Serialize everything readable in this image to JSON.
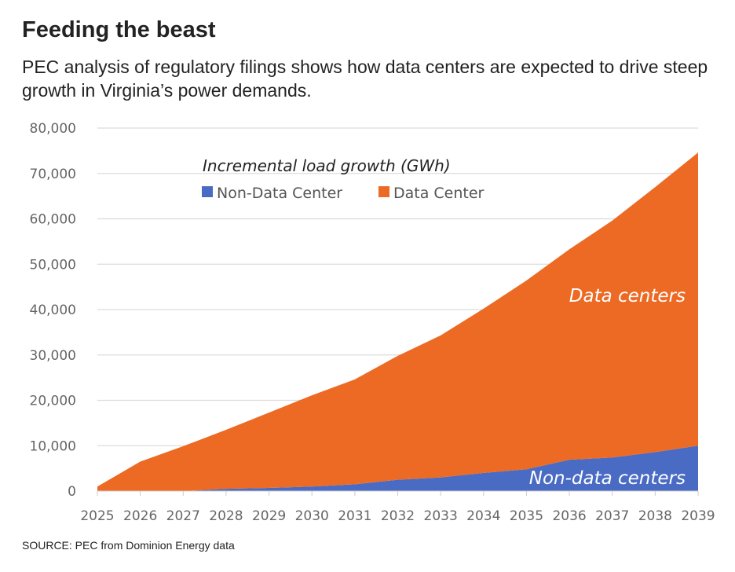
{
  "header": {
    "title": "Feeding the beast",
    "subtitle": "PEC analysis of regulatory filings shows how data centers are expected to drive steep growth in Virginia’s power demands."
  },
  "source": "SOURCE: PEC from Dominion Energy data",
  "chart_data": {
    "type": "area",
    "stacked": true,
    "title": "Incremental load growth (GWh)",
    "xlabel": "",
    "ylabel": "",
    "ylim": [
      0,
      80000
    ],
    "yticks": [
      0,
      10000,
      20000,
      30000,
      40000,
      50000,
      60000,
      70000,
      80000
    ],
    "ytick_labels": [
      "0",
      "10,000",
      "20,000",
      "30,000",
      "40,000",
      "50,000",
      "60,000",
      "70,000",
      "80,000"
    ],
    "grid": true,
    "legend_position": "top-left",
    "categories": [
      "2025",
      "2026",
      "2027",
      "2028",
      "2029",
      "2030",
      "2031",
      "2032",
      "2033",
      "2034",
      "2035",
      "2036",
      "2037",
      "2038",
      "2039"
    ],
    "series": [
      {
        "name": "Non-Data Center",
        "color": "#4a6bc4",
        "values": [
          0,
          0,
          0,
          500,
          700,
          1000,
          1500,
          2500,
          3000,
          4000,
          4800,
          6900,
          7400,
          8600,
          10000
        ]
      },
      {
        "name": "Data Center",
        "color": "#ec6a23",
        "values": [
          1000,
          6500,
          9900,
          13000,
          16600,
          20100,
          23100,
          27300,
          31300,
          36200,
          41600,
          46400,
          52200,
          58400,
          64600
        ]
      }
    ],
    "annotations": [
      "Data centers",
      "Non-data centers"
    ]
  }
}
